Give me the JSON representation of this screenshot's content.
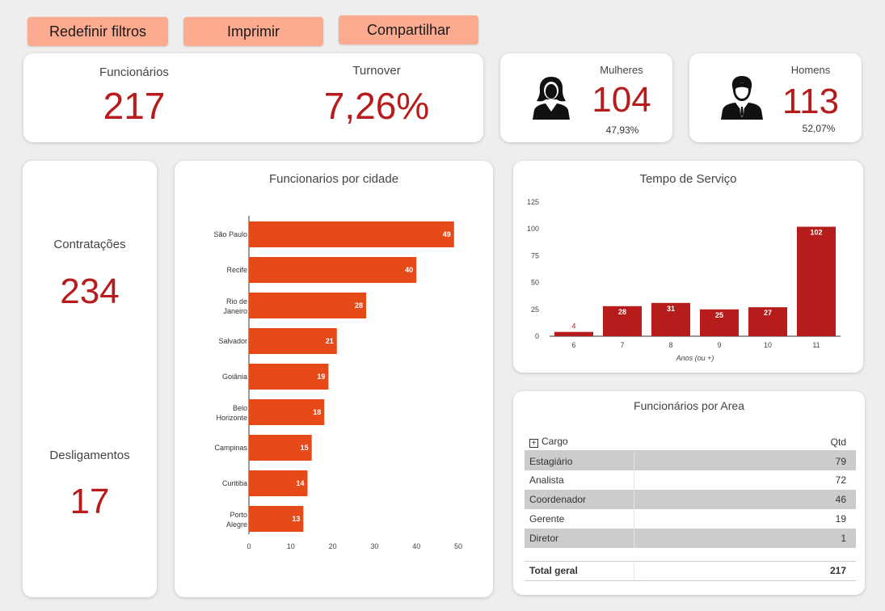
{
  "buttons": {
    "reset": "Redefinir filtros",
    "print": "Imprimir",
    "share": "Compartilhar"
  },
  "kpi": {
    "employees_label": "Funcionários",
    "employees_value": "217",
    "turnover_label": "Turnover",
    "turnover_value": "7,26%"
  },
  "women": {
    "label": "Mulheres",
    "value": "104",
    "pct": "47,93%",
    "icon": "woman-icon"
  },
  "men": {
    "label": "Homens",
    "value": "113",
    "pct": "52,07%",
    "icon": "man-icon"
  },
  "hires": {
    "label": "Contratações",
    "value": "234"
  },
  "exits": {
    "label": "Desligamentos",
    "value": "17"
  },
  "colors": {
    "accent": "#b71c1c",
    "bar_city": "#e64a19",
    "button": "#fcab90"
  },
  "chart_data": [
    {
      "type": "bar",
      "orientation": "horizontal",
      "title": "Funcionarios por cidade",
      "categories": [
        "São Paulo",
        "Recife",
        "Rio de Janeiro",
        "Salvador",
        "Goiânia",
        "Belo Horizonte",
        "Campinas",
        "Curitiba",
        "Porto Alegre"
      ],
      "values": [
        49,
        40,
        28,
        21,
        19,
        18,
        15,
        14,
        13
      ],
      "xlim": [
        0,
        50
      ],
      "xticks": [
        "0",
        "10",
        "20",
        "30",
        "40",
        "50"
      ],
      "grid": false
    },
    {
      "type": "bar",
      "title": "Tempo de Serviço",
      "categories": [
        "6",
        "7",
        "8",
        "9",
        "10",
        "11"
      ],
      "values": [
        4,
        28,
        31,
        25,
        27,
        102
      ],
      "xlabel": "Anos (ou +)",
      "ylim": [
        0,
        125
      ],
      "yticks": [
        "0",
        "25",
        "50",
        "75",
        "100",
        "125"
      ],
      "grid": false
    }
  ],
  "area_table": {
    "title": "Funcionários por Area",
    "col1": "Cargo",
    "col2": "Qtd",
    "rows": [
      {
        "cargo": "Estagiário",
        "qtd": "79"
      },
      {
        "cargo": "Analista",
        "qtd": "72"
      },
      {
        "cargo": "Coordenador",
        "qtd": "46"
      },
      {
        "cargo": "Gerente",
        "qtd": "19"
      },
      {
        "cargo": "Diretor",
        "qtd": "1"
      }
    ],
    "total_label": "Total geral",
    "total_value": "217"
  }
}
